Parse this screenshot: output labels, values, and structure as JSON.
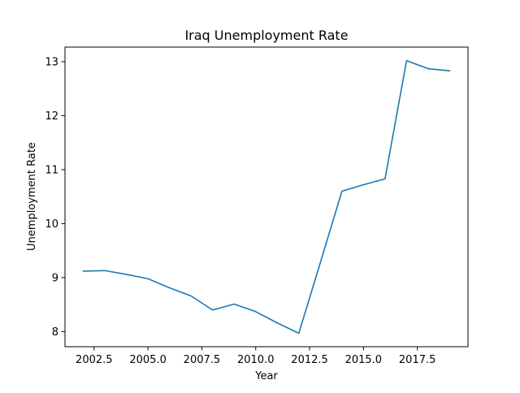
{
  "chart_data": {
    "type": "line",
    "title": "Iraq Unemployment Rate",
    "xlabel": "Year",
    "ylabel": "Unemployment Rate",
    "xlim": [
      2001.15,
      2019.85
    ],
    "ylim": [
      7.72,
      13.27
    ],
    "xticks": [
      2002.5,
      2005.0,
      2007.5,
      2010.0,
      2012.5,
      2015.0,
      2017.5
    ],
    "xtick_labels": [
      "2002.5",
      "2005.0",
      "2007.5",
      "2010.0",
      "2012.5",
      "2015.0",
      "2017.5"
    ],
    "yticks": [
      8,
      9,
      10,
      11,
      12,
      13
    ],
    "ytick_labels": [
      "8",
      "9",
      "10",
      "11",
      "12",
      "13"
    ],
    "grid": false,
    "legend": "none",
    "series": [
      {
        "color": "#1f77b4",
        "x": [
          2002,
          2003,
          2004,
          2005,
          2006,
          2007,
          2008,
          2009,
          2010,
          2011,
          2012,
          2013,
          2014,
          2015,
          2016,
          2017,
          2018,
          2019
        ],
        "y": [
          9.12,
          9.13,
          9.06,
          8.98,
          8.81,
          8.66,
          8.4,
          8.51,
          8.37,
          8.16,
          7.97,
          9.28,
          10.6,
          10.72,
          10.83,
          13.02,
          12.87,
          12.83
        ]
      }
    ]
  }
}
